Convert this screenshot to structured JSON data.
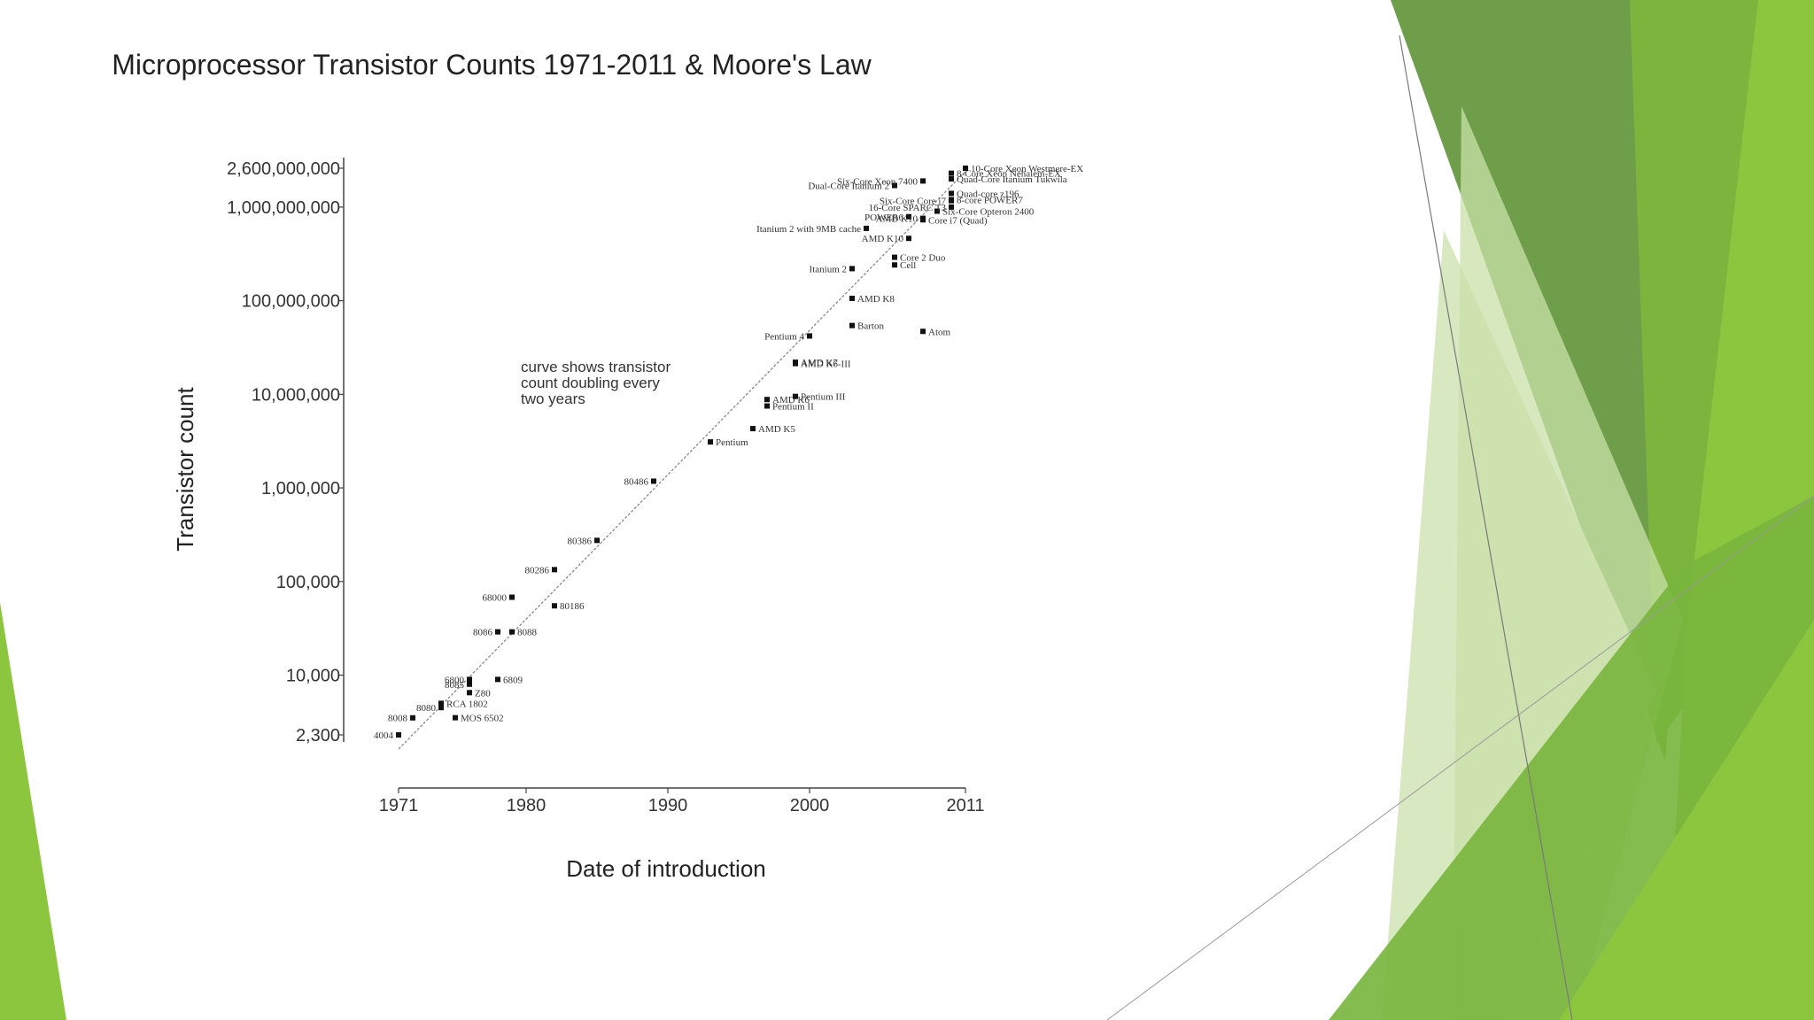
{
  "colors": {
    "accent_dark": "#5e8f3e",
    "accent_mid": "#78b53c",
    "accent_bright": "#8cc63e",
    "accent_light": "#c9e0a8",
    "point": "#111111",
    "trend": "#888888"
  },
  "chart_data": {
    "type": "scatter",
    "title": "Microprocessor Transistor Counts 1971-2011 & Moore's Law",
    "xlabel": "Date of introduction",
    "ylabel": "Transistor count",
    "x_scale": "linear",
    "y_scale": "log",
    "xlim": [
      1971,
      2011
    ],
    "ylim": [
      2300,
      2600000000
    ],
    "x_ticks": [
      "1971",
      "1980",
      "1990",
      "2000",
      "2011"
    ],
    "y_ticks": [
      {
        "value": 2600000000,
        "label": "2,600,000,000"
      },
      {
        "value": 1000000000,
        "label": "1,000,000,000"
      },
      {
        "value": 100000000,
        "label": "100,000,000"
      },
      {
        "value": 10000000,
        "label": "10,000,000"
      },
      {
        "value": 1000000,
        "label": "1,000,000"
      },
      {
        "value": 100000,
        "label": "100,000"
      },
      {
        "value": 10000,
        "label": "10,000"
      },
      {
        "value": 2300,
        "label": "2,300"
      }
    ],
    "annotation": [
      "curve shows transistor",
      "count doubling every",
      "two years"
    ],
    "trend_line": {
      "x": [
        1971,
        2011
      ],
      "y": [
        2300,
        2400000000
      ]
    },
    "grid": false,
    "legend": "none",
    "points": [
      {
        "name": "4004",
        "x": 1971,
        "y": 2300,
        "label_side": "left"
      },
      {
        "name": "8008",
        "x": 1972,
        "y": 3500,
        "label_side": "left"
      },
      {
        "name": "8080",
        "x": 1974,
        "y": 4500,
        "label_side": "left"
      },
      {
        "name": "RCA 1802",
        "x": 1974,
        "y": 5000,
        "label_side": "right"
      },
      {
        "name": "MOS 6502",
        "x": 1975,
        "y": 3510,
        "label_side": "right"
      },
      {
        "name": "Z80",
        "x": 1976,
        "y": 6500,
        "label_side": "right"
      },
      {
        "name": "8085",
        "x": 1976,
        "y": 8000,
        "label_side": "left"
      },
      {
        "name": "6800",
        "x": 1976,
        "y": 9000,
        "label_side": "left"
      },
      {
        "name": "6809",
        "x": 1978,
        "y": 9000,
        "label_side": "right"
      },
      {
        "name": "8086",
        "x": 1978,
        "y": 29000,
        "label_side": "left"
      },
      {
        "name": "8088",
        "x": 1979,
        "y": 29000,
        "label_side": "right"
      },
      {
        "name": "68000",
        "x": 1979,
        "y": 68000,
        "label_side": "left"
      },
      {
        "name": "80186",
        "x": 1982,
        "y": 55000,
        "label_side": "right"
      },
      {
        "name": "80286",
        "x": 1982,
        "y": 134000,
        "label_side": "left"
      },
      {
        "name": "80386",
        "x": 1985,
        "y": 275000,
        "label_side": "left"
      },
      {
        "name": "80486",
        "x": 1989,
        "y": 1180000,
        "label_side": "left"
      },
      {
        "name": "Pentium",
        "x": 1993,
        "y": 3100000,
        "label_side": "right"
      },
      {
        "name": "AMD K5",
        "x": 1996,
        "y": 4300000,
        "label_side": "right"
      },
      {
        "name": "Pentium II",
        "x": 1997,
        "y": 7500000,
        "label_side": "right"
      },
      {
        "name": "AMD K6",
        "x": 1997,
        "y": 8800000,
        "label_side": "right"
      },
      {
        "name": "Pentium III",
        "x": 1999,
        "y": 9500000,
        "label_side": "right"
      },
      {
        "name": "AMD K6-III",
        "x": 1999,
        "y": 21300000,
        "label_side": "right"
      },
      {
        "name": "AMD K7",
        "x": 1999,
        "y": 22000000,
        "label_side": "right"
      },
      {
        "name": "Pentium 4",
        "x": 2000,
        "y": 42000000,
        "label_side": "left"
      },
      {
        "name": "Barton",
        "x": 2003,
        "y": 54300000,
        "label_side": "right"
      },
      {
        "name": "Atom",
        "x": 2008,
        "y": 47000000,
        "label_side": "right"
      },
      {
        "name": "AMD K8",
        "x": 2003,
        "y": 105900000,
        "label_side": "right"
      },
      {
        "name": "Itanium 2",
        "x": 2003,
        "y": 220000000,
        "label_side": "left"
      },
      {
        "name": "Cell",
        "x": 2006,
        "y": 241000000,
        "label_side": "right"
      },
      {
        "name": "Core 2 Duo",
        "x": 2006,
        "y": 291000000,
        "label_side": "right"
      },
      {
        "name": "AMD K10",
        "x": 2007,
        "y": 463000000,
        "label_side": "left"
      },
      {
        "name": "Core i7 (Quad)",
        "x": 2008,
        "y": 731000000,
        "label_side": "right"
      },
      {
        "name": "Itanium 2 with 9MB cache",
        "x": 2004,
        "y": 592000000,
        "label_side": "left"
      },
      {
        "name": "POWER6",
        "x": 2007,
        "y": 789000000,
        "label_side": "left"
      },
      {
        "name": "AMD K10",
        "x": 2008,
        "y": 758000000,
        "label_side": "left"
      },
      {
        "name": "Six-Core Opteron 2400",
        "x": 2009,
        "y": 904000000,
        "label_side": "right"
      },
      {
        "name": "8-Core Xeon Nehalem-EX",
        "x": 2010,
        "y": 2300000000,
        "label_side": "right"
      },
      {
        "name": "Dual-Core Itanium 2",
        "x": 2006,
        "y": 1700000000,
        "label_side": "left"
      },
      {
        "name": "Six-Core Xeon 7400",
        "x": 2008,
        "y": 1900000000,
        "label_side": "left"
      },
      {
        "name": "Quad-Core Itanium Tukwila",
        "x": 2010,
        "y": 2000000000,
        "label_side": "right"
      },
      {
        "name": "Quad-core z196",
        "x": 2010,
        "y": 1400000000,
        "label_side": "right"
      },
      {
        "name": "8-core POWER7",
        "x": 2010,
        "y": 1200000000,
        "label_side": "right"
      },
      {
        "name": "Six-Core Core i7",
        "x": 2010,
        "y": 1170000000,
        "label_side": "left"
      },
      {
        "name": "16-Core SPARC T3",
        "x": 2010,
        "y": 1000000000,
        "label_side": "left"
      },
      {
        "name": "10-Core Xeon Westmere-EX",
        "x": 2011,
        "y": 2600000000,
        "label_side": "right"
      }
    ]
  }
}
